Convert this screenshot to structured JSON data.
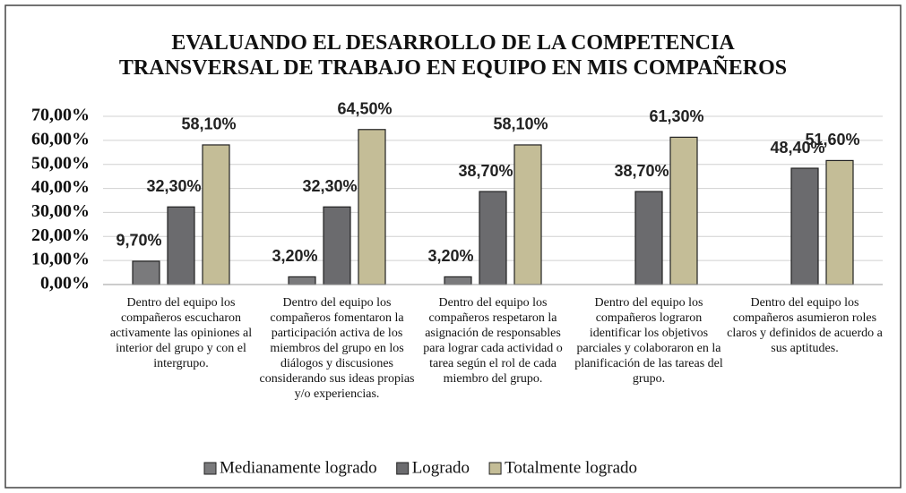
{
  "chart_data": {
    "type": "bar",
    "title": "EVALUANDO EL DESARROLLO DE LA COMPETENCIA TRANSVERSAL DE TRABAJO EN EQUIPO EN MIS COMPAÑEROS",
    "categories": [
      "Dentro del equipo los compañeros escucharon activamente las opiniones al interior del grupo y con el intergrupo.",
      "Dentro del equipo los compañeros fomentaron la participación activa de los miembros del grupo en los diálogos y discusiones considerando sus ideas propias y/o experiencias.",
      "Dentro del equipo los compañeros respetaron la asignación de responsables para lograr cada actividad o tarea según el rol de cada miembro del grupo.",
      "Dentro del equipo los compañeros lograron identificar los objetivos parciales y colaboraron en la planificación de las tareas del grupo.",
      "Dentro del equipo los compañeros asumieron roles claros y definidos de acuerdo a sus aptitudes."
    ],
    "series": [
      {
        "name": "Medianamente logrado",
        "color": "#7a7a7c",
        "values": [
          9.7,
          3.2,
          3.2,
          null,
          null
        ],
        "value_labels": [
          "9,70%",
          "3,20%",
          "3,20%",
          null,
          null
        ]
      },
      {
        "name": "Logrado",
        "color": "#6b6b6e",
        "values": [
          32.3,
          32.3,
          38.7,
          38.7,
          48.4
        ],
        "value_labels": [
          "32,30%",
          "32,30%",
          "38,70%",
          "38,70%",
          "48,40%"
        ]
      },
      {
        "name": "Totalmente logrado",
        "color": "#c4bd97",
        "values": [
          58.1,
          64.5,
          58.1,
          61.3,
          51.6
        ],
        "value_labels": [
          "58,10%",
          "64,50%",
          "58,10%",
          "61,30%",
          "51,60%"
        ]
      }
    ],
    "ylim": [
      0,
      70
    ],
    "yticks": [
      {
        "value": 0,
        "label": "0,00%"
      },
      {
        "value": 10,
        "label": "10,00%"
      },
      {
        "value": 20,
        "label": "20,00%"
      },
      {
        "value": 30,
        "label": "30,00%"
      },
      {
        "value": 40,
        "label": "40,00%"
      },
      {
        "value": 50,
        "label": "50,00%"
      },
      {
        "value": 60,
        "label": "60,00%"
      },
      {
        "value": 70,
        "label": "70,00%"
      }
    ],
    "grid": true,
    "legend": "bottom"
  }
}
